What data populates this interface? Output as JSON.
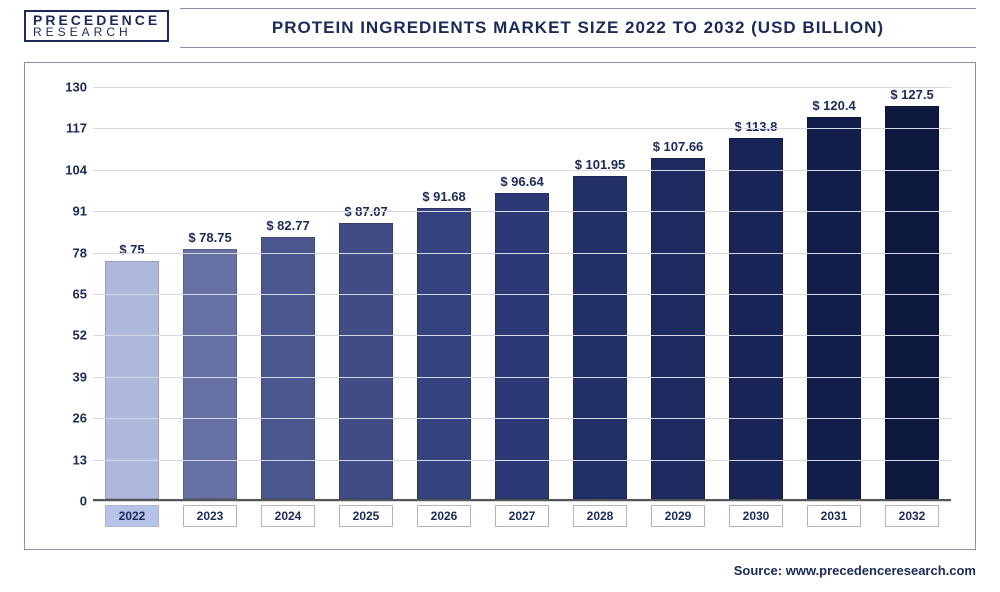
{
  "logo": {
    "line1": "PRECEDENCE",
    "line2": "RESEARCH"
  },
  "title": "Protein Ingredients Market Size 2022 to 2032 (USD Billion)",
  "source": "Source: www.precedenceresearch.com",
  "chart": {
    "type": "bar",
    "ylim": [
      0,
      130
    ],
    "ytick_step": 13,
    "yticks": [
      0,
      13,
      26,
      39,
      52,
      65,
      78,
      91,
      104,
      117,
      130
    ],
    "grid_color": "#d6d9e4",
    "axis_color": "#555555",
    "background_color": "#ffffff",
    "label_fontsize": 13,
    "label_color": "#1a2a5a",
    "bar_width": 0.7,
    "categories": [
      "2022",
      "2023",
      "2024",
      "2025",
      "2026",
      "2027",
      "2028",
      "2029",
      "2030",
      "2031",
      "2032"
    ],
    "highlight_index": 0,
    "values": [
      75,
      78.75,
      82.77,
      87.07,
      91.68,
      96.64,
      101.95,
      107.66,
      113.8,
      120.4,
      127.5
    ],
    "value_labels": [
      "$ 75",
      "$ 78.75",
      "$ 82.77",
      "$ 87.07",
      "$ 91.68",
      "$ 96.64",
      "$ 101.95",
      "$ 107.66",
      "$ 113.8",
      "$ 120.4",
      "$ 127.5"
    ],
    "bar_colors": [
      "#aeb9db",
      "#6571a2",
      "#4a578e",
      "#3f4c86",
      "#34437f",
      "#2b3a76",
      "#22306a",
      "#1c2a60",
      "#172455",
      "#121e4a",
      "#0e193f"
    ]
  }
}
